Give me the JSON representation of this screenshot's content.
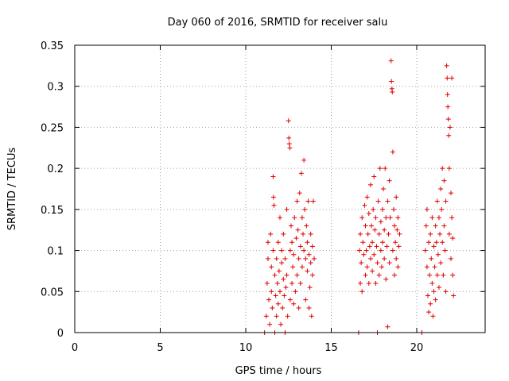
{
  "chart_data": {
    "type": "scatter",
    "title": "Day 060 of 2016, SRMTID for receiver salu",
    "xlabel": "GPS time / hours",
    "ylabel": "SRMTID / TECUs",
    "xlim": [
      0,
      24
    ],
    "ylim": [
      0,
      0.35
    ],
    "xticks": [
      0,
      5,
      10,
      15,
      20
    ],
    "xtick_labels": [
      "0",
      "5",
      "10",
      "15",
      "20"
    ],
    "yticks": [
      0,
      0.05,
      0.1,
      0.15,
      0.2,
      0.25,
      0.3,
      0.35
    ],
    "ytick_labels": [
      "0",
      "0.05",
      "0.1",
      "0.15",
      "0.2",
      "0.25",
      "0.3",
      "0.35"
    ],
    "grid": true,
    "marker": "+",
    "series": [
      {
        "name": "SRMTID",
        "color": "#dd0000",
        "points": [
          [
            11.1,
            0.0
          ],
          [
            11.2,
            0.02
          ],
          [
            11.25,
            0.06
          ],
          [
            11.3,
            0.09
          ],
          [
            11.3,
            0.11
          ],
          [
            11.35,
            0.04
          ],
          [
            11.4,
            0.01
          ],
          [
            11.45,
            0.12
          ],
          [
            11.5,
            0.05
          ],
          [
            11.5,
            0.08
          ],
          [
            11.55,
            0.03
          ],
          [
            11.6,
            0.1
          ],
          [
            11.6,
            0.19
          ],
          [
            11.62,
            0.165
          ],
          [
            11.65,
            0.155
          ],
          [
            11.7,
            0.07
          ],
          [
            11.7,
            0.0
          ],
          [
            11.75,
            0.045
          ],
          [
            11.8,
            0.09
          ],
          [
            11.8,
            0.02
          ],
          [
            11.85,
            0.06
          ],
          [
            11.9,
            0.11
          ],
          [
            11.9,
            0.035
          ],
          [
            11.95,
            0.075
          ],
          [
            12.0,
            0.05
          ],
          [
            12.0,
            0.14
          ],
          [
            12.05,
            0.01
          ],
          [
            12.1,
            0.085
          ],
          [
            12.1,
            0.1
          ],
          [
            12.15,
            0.03
          ],
          [
            12.2,
            0.065
          ],
          [
            12.2,
            0.12
          ],
          [
            12.25,
            0.045
          ],
          [
            12.3,
            0.09
          ],
          [
            12.3,
            0.0
          ],
          [
            12.35,
            0.055
          ],
          [
            12.4,
            0.15
          ],
          [
            12.4,
            0.07
          ],
          [
            12.45,
            0.02
          ],
          [
            12.5,
            0.258
          ],
          [
            12.52,
            0.237
          ],
          [
            12.55,
            0.23
          ],
          [
            12.58,
            0.225
          ],
          [
            12.6,
            0.1
          ],
          [
            12.6,
            0.04
          ],
          [
            12.65,
            0.13
          ],
          [
            12.7,
            0.06
          ],
          [
            12.7,
            0.11
          ],
          [
            12.75,
            0.08
          ],
          [
            12.8,
            0.035
          ],
          [
            12.8,
            0.095
          ],
          [
            12.85,
            0.14
          ],
          [
            12.9,
            0.05
          ],
          [
            12.95,
            0.115
          ],
          [
            13.0,
            0.07
          ],
          [
            13.0,
            0.16
          ],
          [
            13.05,
            0.125
          ],
          [
            13.1,
            0.09
          ],
          [
            13.1,
            0.03
          ],
          [
            13.15,
            0.17
          ],
          [
            13.2,
            0.105
          ],
          [
            13.2,
            0.06
          ],
          [
            13.25,
            0.194
          ],
          [
            13.3,
            0.14
          ],
          [
            13.3,
            0.08
          ],
          [
            13.35,
            0.12
          ],
          [
            13.4,
            0.21
          ],
          [
            13.4,
            0.1
          ],
          [
            13.45,
            0.15
          ],
          [
            13.5,
            0.04
          ],
          [
            13.5,
            0.09
          ],
          [
            13.55,
            0.13
          ],
          [
            13.6,
            0.075
          ],
          [
            13.6,
            0.11
          ],
          [
            13.65,
            0.16
          ],
          [
            13.7,
            0.03
          ],
          [
            13.7,
            0.095
          ],
          [
            13.75,
            0.055
          ],
          [
            13.8,
            0.12
          ],
          [
            13.8,
            0.085
          ],
          [
            13.85,
            0.02
          ],
          [
            13.9,
            0.07
          ],
          [
            13.9,
            0.105
          ],
          [
            13.95,
            0.16
          ],
          [
            14.0,
            0.09
          ],
          [
            16.6,
            0.0
          ],
          [
            16.65,
            0.1
          ],
          [
            16.7,
            0.06
          ],
          [
            16.7,
            0.12
          ],
          [
            16.75,
            0.085
          ],
          [
            16.8,
            0.14
          ],
          [
            16.8,
            0.05
          ],
          [
            16.85,
            0.11
          ],
          [
            16.9,
            0.095
          ],
          [
            16.95,
            0.155
          ],
          [
            17.0,
            0.07
          ],
          [
            17.0,
            0.13
          ],
          [
            17.05,
            0.1
          ],
          [
            17.1,
            0.165
          ],
          [
            17.1,
            0.08
          ],
          [
            17.15,
            0.12
          ],
          [
            17.2,
            0.06
          ],
          [
            17.2,
            0.145
          ],
          [
            17.25,
            0.105
          ],
          [
            17.3,
            0.18
          ],
          [
            17.3,
            0.09
          ],
          [
            17.35,
            0.13
          ],
          [
            17.4,
            0.075
          ],
          [
            17.4,
            0.11
          ],
          [
            17.45,
            0.15
          ],
          [
            17.5,
            0.19
          ],
          [
            17.5,
            0.095
          ],
          [
            17.55,
            0.125
          ],
          [
            17.6,
            0.06
          ],
          [
            17.6,
            0.14
          ],
          [
            17.65,
            0.105
          ],
          [
            17.7,
            0.0
          ],
          [
            17.7,
            0.085
          ],
          [
            17.75,
            0.16
          ],
          [
            17.8,
            0.12
          ],
          [
            17.8,
            0.07
          ],
          [
            17.85,
            0.2
          ],
          [
            17.9,
            0.1
          ],
          [
            17.9,
            0.135
          ],
          [
            17.95,
            0.08
          ],
          [
            18.0,
            0.15
          ],
          [
            18.0,
            0.11
          ],
          [
            18.05,
            0.175
          ],
          [
            18.1,
            0.09
          ],
          [
            18.1,
            0.125
          ],
          [
            18.15,
            0.2
          ],
          [
            18.2,
            0.065
          ],
          [
            18.2,
            0.14
          ],
          [
            18.25,
            0.105
          ],
          [
            18.3,
            0.007
          ],
          [
            18.3,
            0.16
          ],
          [
            18.35,
            0.12
          ],
          [
            18.4,
            0.085
          ],
          [
            18.4,
            0.185
          ],
          [
            18.45,
            0.14
          ],
          [
            18.5,
            0.331
          ],
          [
            18.52,
            0.306
          ],
          [
            18.55,
            0.297
          ],
          [
            18.57,
            0.293
          ],
          [
            18.6,
            0.22
          ],
          [
            18.6,
            0.1
          ],
          [
            18.65,
            0.15
          ],
          [
            18.7,
            0.07
          ],
          [
            18.7,
            0.13
          ],
          [
            18.75,
            0.11
          ],
          [
            18.8,
            0.165
          ],
          [
            18.8,
            0.09
          ],
          [
            18.85,
            0.125
          ],
          [
            18.9,
            0.08
          ],
          [
            18.9,
            0.14
          ],
          [
            18.95,
            0.105
          ],
          [
            19.0,
            0.12
          ],
          [
            20.3,
            0.0
          ],
          [
            20.5,
            0.1
          ],
          [
            20.55,
            0.13
          ],
          [
            20.6,
            0.08
          ],
          [
            20.6,
            0.15
          ],
          [
            20.65,
            0.045
          ],
          [
            20.7,
            0.11
          ],
          [
            20.7,
            0.025
          ],
          [
            20.75,
            0.07
          ],
          [
            20.8,
            0.12
          ],
          [
            20.8,
            0.035
          ],
          [
            20.85,
            0.09
          ],
          [
            20.9,
            0.06
          ],
          [
            20.9,
            0.14
          ],
          [
            20.95,
            0.02
          ],
          [
            21.0,
            0.105
          ],
          [
            21.0,
            0.05
          ],
          [
            21.05,
            0.08
          ],
          [
            21.1,
            0.13
          ],
          [
            21.1,
            0.04
          ],
          [
            21.15,
            0.11
          ],
          [
            21.2,
            0.07
          ],
          [
            21.2,
            0.16
          ],
          [
            21.25,
            0.095
          ],
          [
            21.3,
            0.14
          ],
          [
            21.3,
            0.055
          ],
          [
            21.35,
            0.12
          ],
          [
            21.4,
            0.175
          ],
          [
            21.4,
            0.085
          ],
          [
            21.45,
            0.15
          ],
          [
            21.5,
            0.11
          ],
          [
            21.5,
            0.2
          ],
          [
            21.55,
            0.07
          ],
          [
            21.6,
            0.13
          ],
          [
            21.6,
            0.185
          ],
          [
            21.65,
            0.1
          ],
          [
            21.7,
            0.16
          ],
          [
            21.7,
            0.05
          ],
          [
            21.75,
            0.325
          ],
          [
            21.78,
            0.31
          ],
          [
            21.8,
            0.29
          ],
          [
            21.82,
            0.275
          ],
          [
            21.85,
            0.26
          ],
          [
            21.87,
            0.24
          ],
          [
            21.9,
            0.2
          ],
          [
            21.9,
            0.12
          ],
          [
            21.95,
            0.25
          ],
          [
            22.0,
            0.09
          ],
          [
            22.0,
            0.17
          ],
          [
            22.05,
            0.14
          ],
          [
            22.05,
            0.31
          ],
          [
            22.1,
            0.07
          ],
          [
            22.1,
            0.115
          ],
          [
            22.15,
            0.045
          ]
        ]
      }
    ]
  }
}
